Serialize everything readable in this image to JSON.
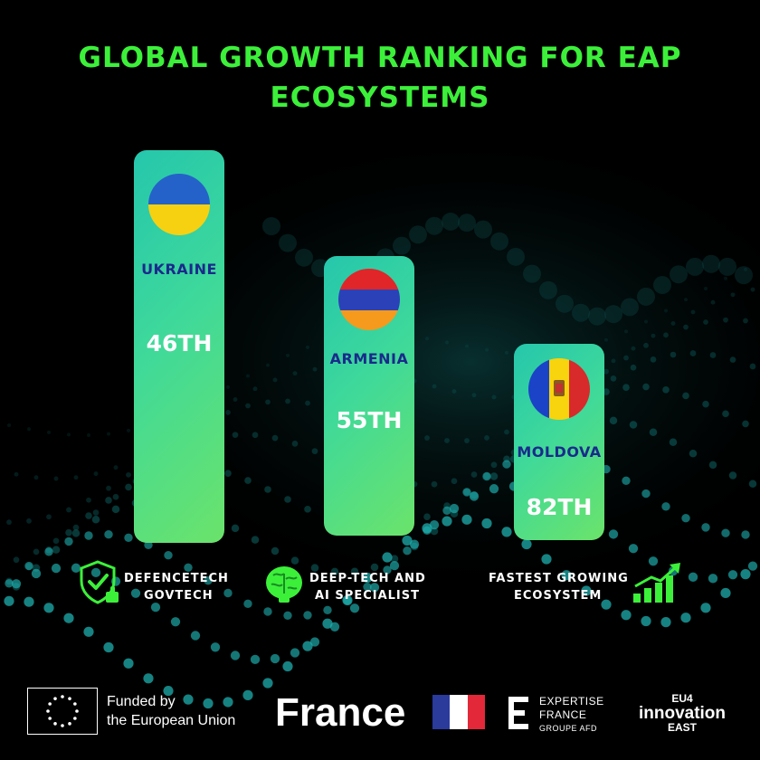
{
  "chart_data": {
    "type": "bar",
    "title": "GLOBAL GROWTH RANKING FOR EAP ECOSYSTEMS",
    "categories": [
      "UKRAINE",
      "ARMENIA",
      "MOLDOVA"
    ],
    "values": [
      46,
      55,
      82
    ],
    "value_labels": [
      "46TH",
      "55TH",
      "82TH"
    ],
    "orientation": "vertical",
    "note_order": "taller bar = better rank",
    "bar_color": "#3fd99a"
  },
  "features": [
    {
      "line1": "DEFENCETECH",
      "line2": "GOVTECH",
      "icon": "shield-check-icon"
    },
    {
      "line1": "DEEP-TECH AND",
      "line2": "AI SPECIALIST",
      "icon": "brain-icon"
    },
    {
      "line1": "FASTEST GROWING",
      "line2": "ECOSYSTEM",
      "icon": "growth-chart-icon"
    }
  ],
  "footer": {
    "eu_line1": "Funded by",
    "eu_line2": "the European Union",
    "france": "France",
    "expertise_line1": "EXPERTISE",
    "expertise_line2": "FRANCE",
    "expertise_line3": "GROUPE AFD",
    "eu4_line1": "EU4",
    "eu4_line2": "innovation",
    "eu4_line3": "EAST"
  },
  "colors": {
    "title": "#3cf03a",
    "country_text": "#1a2a8c",
    "icon_green": "#3cf03a"
  }
}
